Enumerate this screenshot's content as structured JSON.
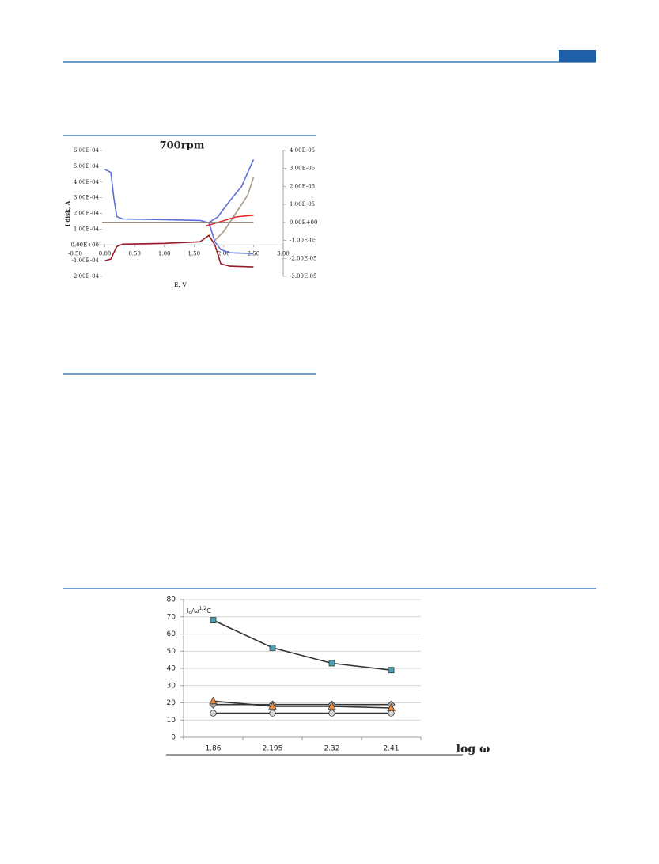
{
  "chart_data": [
    {
      "type": "line",
      "title": "700rpm",
      "xlabel": "E, V",
      "ylabel": "I disk, A",
      "xlim": [
        -0.5,
        3.0
      ],
      "xticks": [
        {
          "value": -0.5,
          "label": "-0.50"
        },
        {
          "value": 0,
          "label": "0.00"
        },
        {
          "value": 0.5,
          "label": "0.50"
        },
        {
          "value": 1.0,
          "label": "1.00"
        },
        {
          "value": 1.5,
          "label": "1.50"
        },
        {
          "value": 2.0,
          "label": "2.00"
        },
        {
          "value": 2.5,
          "label": "2.50"
        },
        {
          "value": 3.0,
          "label": "3.00"
        }
      ],
      "ylim": [
        -0.0002,
        0.0006
      ],
      "yticks": [
        {
          "value": 0.0006,
          "label": "6.00E-04"
        },
        {
          "value": 0.0005,
          "label": "5.00E-04"
        },
        {
          "value": 0.0004,
          "label": "4.00E-04"
        },
        {
          "value": 0.0003,
          "label": "3.00E-04"
        },
        {
          "value": 0.0002,
          "label": "2.00E-04"
        },
        {
          "value": 0.0001,
          "label": "1.00E-04"
        },
        {
          "value": 0,
          "label": "0.00E+00"
        },
        {
          "value": -0.0001,
          "label": "-1.00E-04"
        },
        {
          "value": -0.0002,
          "label": "-2.00E-04"
        }
      ],
      "y2lim": [
        -3e-05,
        4e-05
      ],
      "y2ticks": [
        {
          "value": 4e-05,
          "label": "4.00E-05"
        },
        {
          "value": 3e-05,
          "label": "3.00E-05"
        },
        {
          "value": 2e-05,
          "label": "2.00E-05"
        },
        {
          "value": 1e-05,
          "label": "1.00E-05"
        },
        {
          "value": 0,
          "label": "0.00E+00"
        },
        {
          "value": -1e-05,
          "label": "-1.00E-05"
        },
        {
          "value": -2e-05,
          "label": "-2.00E-05"
        },
        {
          "value": -3e-05,
          "label": "-3.00E-05"
        }
      ],
      "series": [
        {
          "color": "#5a6fd8",
          "x": [
            0,
            0.1,
            0.15,
            0.2,
            0.3,
            1.0,
            1.6,
            1.75,
            1.85,
            1.95,
            2.1,
            2.5
          ],
          "values": [
            0.00048,
            0.00046,
            0.0003,
            0.00018,
            0.000165,
            0.00016,
            0.000155,
            0.00014,
            2e-05,
            -3e-05,
            -5e-05,
            -5.5e-05
          ]
        },
        {
          "color": "#9a1a2a",
          "x": [
            0,
            0.1,
            0.2,
            0.3,
            1.0,
            1.6,
            1.75,
            1.85,
            1.95,
            2.1,
            2.5
          ],
          "values": [
            -0.0001,
            -9e-05,
            -1e-05,
            5e-06,
            1e-05,
            2e-05,
            6e-05,
            0,
            -0.00012,
            -0.000135,
            -0.00014
          ]
        },
        {
          "color": "#5a6fd8",
          "axis": "y2",
          "x": [
            1.75,
            1.9,
            2.1,
            2.3,
            2.5
          ],
          "values": [
            0,
            3e-06,
            1.2e-05,
            2e-05,
            3.5e-05
          ]
        },
        {
          "color": "#a89a88",
          "axis": "y2",
          "x": [
            1.85,
            2.0,
            2.2,
            2.4,
            2.5
          ],
          "values": [
            -1e-05,
            -5e-06,
            5e-06,
            1.5e-05,
            2.5e-05
          ]
        },
        {
          "color": "#e8262a",
          "axis": "y2",
          "x": [
            1.7,
            2.0,
            2.2,
            2.5
          ],
          "values": [
            -2e-06,
            1e-06,
            3e-06,
            4e-06
          ]
        },
        {
          "color": "#8a8078",
          "axis": "y2",
          "x": [
            -0.05,
            2.5
          ],
          "values": [
            0,
            0
          ]
        }
      ]
    },
    {
      "type": "line",
      "xlabel": "log ω",
      "annotation": {
        "base": "I",
        "sub": "d",
        "mid": "/ω",
        "sup": "1/2",
        "end": "C"
      },
      "categories": [
        "1.86",
        "2.195",
        "2.32",
        "2.41"
      ],
      "ylim": [
        0,
        80
      ],
      "yticks": [
        0,
        10,
        20,
        30,
        40,
        50,
        60,
        70,
        80
      ],
      "grid": true,
      "line_color": "#333333",
      "series": [
        {
          "marker": "square",
          "color": "#4aa3b5",
          "values": [
            68,
            52,
            43,
            39
          ]
        },
        {
          "marker": "triangle",
          "color": "#f08c3c",
          "values": [
            21,
            18,
            18,
            17
          ]
        },
        {
          "marker": "diamond",
          "color": "#a8a8a8",
          "values": [
            19,
            19,
            19,
            19
          ]
        },
        {
          "marker": "circle",
          "color": "#d8d8d8",
          "values": [
            14,
            14,
            14,
            14
          ]
        }
      ]
    }
  ]
}
